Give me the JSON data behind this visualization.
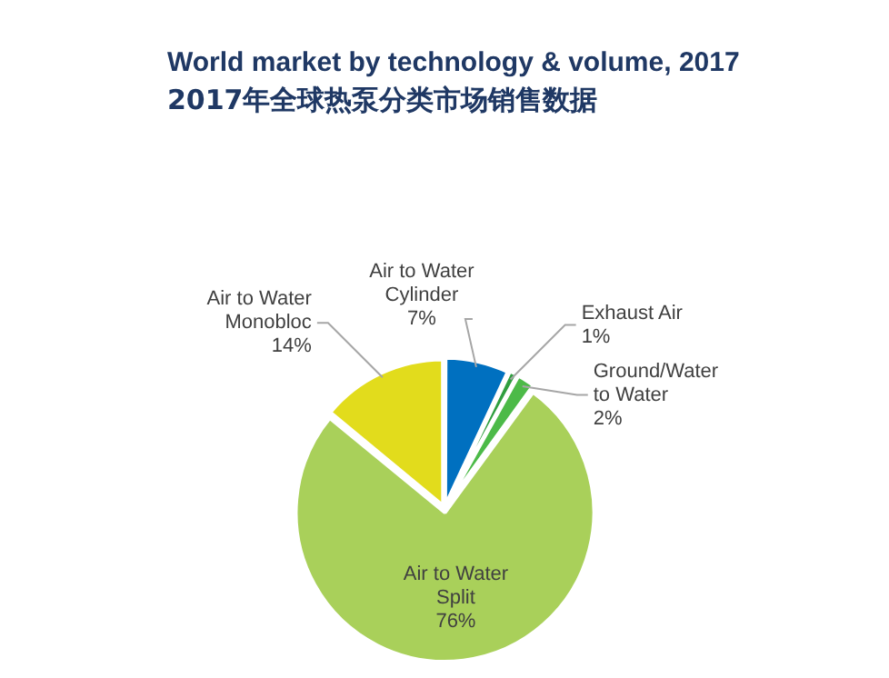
{
  "chart_data": {
    "type": "pie",
    "title": "World market by technology & volume, 2017",
    "subtitle": "2017年全球热泵分类市场销售数据",
    "categories": [
      "Air to Water Cylinder",
      "Exhaust Air",
      "Ground/Water to Water",
      "Air to Water Split",
      "Air to Water Monobloc"
    ],
    "values": [
      7,
      1,
      2,
      76,
      14
    ],
    "value_labels": [
      "7%",
      "1%",
      "2%",
      "76%",
      "14%"
    ],
    "colors": [
      "#0070c0",
      "#2f9e3f",
      "#4cba48",
      "#a9d05a",
      "#e2dc1c"
    ],
    "legend": false
  }
}
